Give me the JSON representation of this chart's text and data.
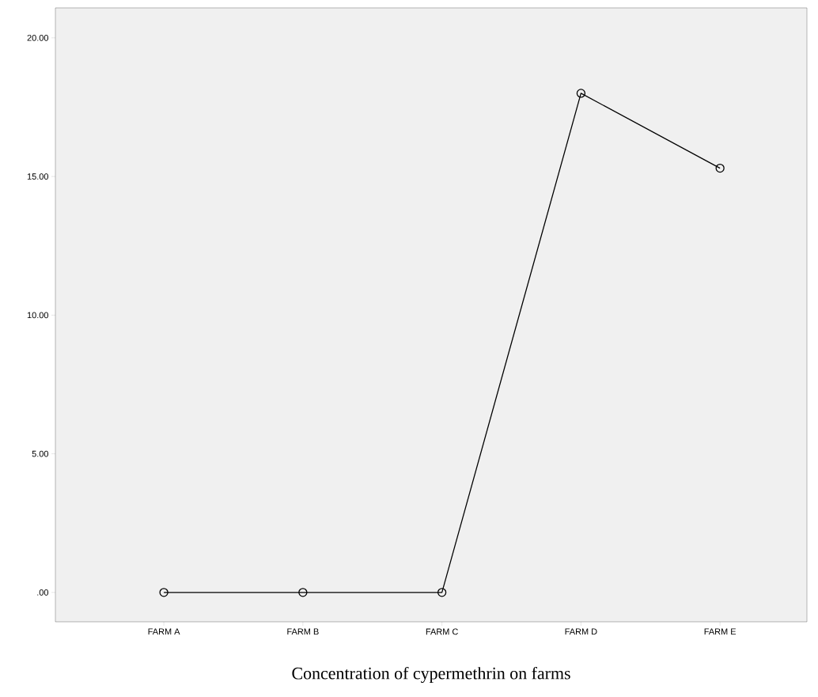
{
  "chart_data": {
    "type": "line",
    "categories": [
      "FARM A",
      "FARM B",
      "FARM C",
      "FARM D",
      "FARM E"
    ],
    "values": [
      0,
      0,
      0,
      18.0,
      15.3
    ],
    "color": "#000000",
    "marker": "circle",
    "line_style": "solid",
    "ylim": [
      -1.06,
      21.08
    ],
    "yticks": [
      {
        "value": 0,
        "label": ".00"
      },
      {
        "value": 5,
        "label": "5.00"
      },
      {
        "value": 10,
        "label": "10.00"
      },
      {
        "value": 15,
        "label": "15.00"
      },
      {
        "value": 20,
        "label": "20.00"
      }
    ],
    "annotations": [
      "Concentration of cypermethrin on farms"
    ]
  }
}
